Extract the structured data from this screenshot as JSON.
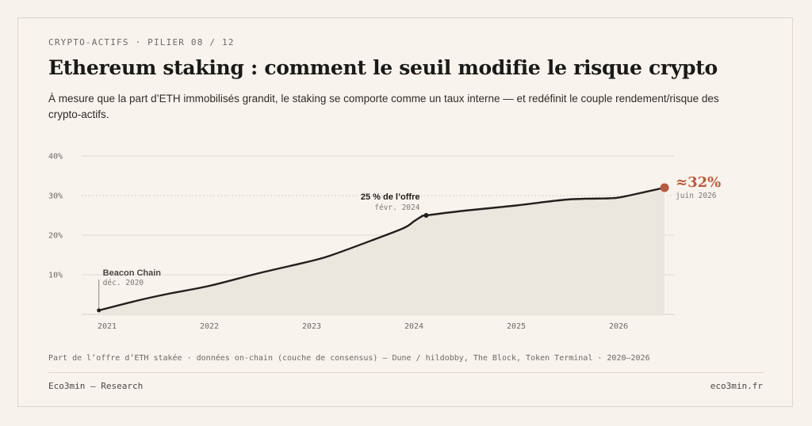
{
  "header": {
    "kicker": "CRYPTO-ACTIFS · PILIER 08 / 12",
    "title": "Ethereum staking : comment le seuil modifie le risque crypto",
    "subtitle": "À mesure que la part d’ETH immobilisés grandit, le staking se comporte comme un taux interne — et redéfinit le couple rendement/risque des crypto-actifs."
  },
  "chart_data": {
    "type": "area",
    "title": "",
    "xlabel": "",
    "ylabel": "",
    "ylim": [
      0,
      40
    ],
    "y_ticks": [
      "40%",
      "30%",
      "20%",
      "10%"
    ],
    "y_tick_values": [
      40,
      30,
      20,
      10
    ],
    "x_ticks": [
      "2021",
      "2022",
      "2023",
      "2024",
      "2025",
      "2026"
    ],
    "x_tick_values": [
      2021,
      2022,
      2023,
      2024,
      2025,
      2026
    ],
    "grid": true,
    "reference_line": {
      "y": 30,
      "style": "dotted"
    },
    "series": [
      {
        "x": [
          2020.92,
          2021.3,
          2021.6,
          2022.0,
          2022.5,
          2023.0,
          2023.2,
          2023.6,
          2023.9,
          2024.0,
          2024.08,
          2024.12,
          2024.5,
          2025.0,
          2025.5,
          2025.9,
          2026.0,
          2026.1,
          2026.45
        ],
        "y": [
          1,
          3.5,
          5.2,
          7.2,
          10.5,
          13.5,
          15,
          18.8,
          21.8,
          23.5,
          24.8,
          25,
          26.2,
          27.5,
          29,
          29.3,
          29.5,
          30,
          32
        ]
      }
    ],
    "annotations": [
      {
        "x": 2020.92,
        "y": 1,
        "label": "Beacon Chain",
        "date": "déc. 2020"
      },
      {
        "x": 2024.12,
        "y": 25,
        "label": "25 % de l’offre",
        "date": "févr. 2024"
      },
      {
        "x": 2026.45,
        "y": 32,
        "label": "≈32%",
        "date": "juin 2026"
      }
    ],
    "colors": {
      "line": "#22201d",
      "area": "#ebe6de",
      "endpoint": "#b85a3c",
      "grid": "#e1dcd3"
    }
  },
  "footer": {
    "source": "Part de l’offre d’ETH stakée · données on-chain (couche de consensus) — Dune / hildobby, The Block, Token Terminal · 2020–2026",
    "brand": "Eco3min — Research",
    "site": "eco3min.fr"
  }
}
